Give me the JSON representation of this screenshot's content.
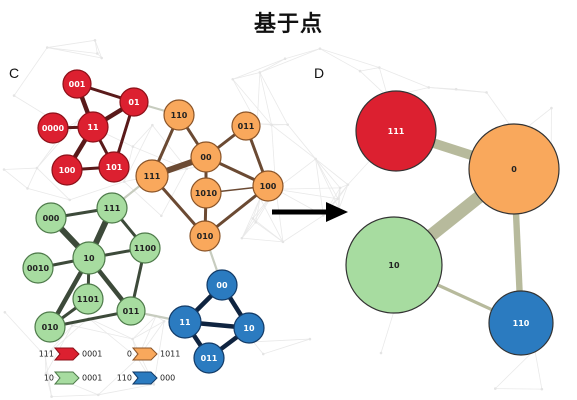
{
  "title": "基于点",
  "panels": {
    "left_label": "C",
    "right_label": "D"
  },
  "colors": {
    "red": "#dc2030",
    "red_dark": "#8c1018",
    "orange": "#f9a85c",
    "orange_dark": "#8a5428",
    "green": "#a7dca0",
    "green_dark": "#4e7a4a",
    "blue": "#2b7bc0",
    "blue_dark": "#123a66",
    "edge_red": "#5a1a1a",
    "edge_orange": "#6b4a33",
    "edge_green": "#3d4a3a",
    "edge_blue": "#0f2440",
    "edge_between": "#c7ccbf",
    "edge_summary": "#b0b392"
  },
  "diagram": {
    "left_nodes": [
      {
        "id": "001",
        "label": "001",
        "group": "red"
      },
      {
        "id": "01",
        "label": "01",
        "group": "red"
      },
      {
        "id": "0000",
        "label": "0000",
        "group": "red"
      },
      {
        "id": "11",
        "label": "11",
        "group": "red"
      },
      {
        "id": "100r",
        "label": "100",
        "group": "red"
      },
      {
        "id": "101",
        "label": "101",
        "group": "red"
      },
      {
        "id": "110o",
        "label": "110",
        "group": "orange"
      },
      {
        "id": "011o",
        "label": "011",
        "group": "orange"
      },
      {
        "id": "111o",
        "label": "111",
        "group": "orange"
      },
      {
        "id": "00o",
        "label": "00",
        "group": "orange"
      },
      {
        "id": "1010",
        "label": "1010",
        "group": "orange"
      },
      {
        "id": "100o",
        "label": "100",
        "group": "orange"
      },
      {
        "id": "010o",
        "label": "010",
        "group": "orange"
      },
      {
        "id": "000g",
        "label": "000",
        "group": "green"
      },
      {
        "id": "111g",
        "label": "111",
        "group": "green"
      },
      {
        "id": "10g",
        "label": "10",
        "group": "green"
      },
      {
        "id": "1100",
        "label": "1100",
        "group": "green"
      },
      {
        "id": "0010",
        "label": "0010",
        "group": "green"
      },
      {
        "id": "1101",
        "label": "1101",
        "group": "green"
      },
      {
        "id": "010g",
        "label": "010",
        "group": "green"
      },
      {
        "id": "011g",
        "label": "011",
        "group": "green"
      },
      {
        "id": "00b",
        "label": "00",
        "group": "blue"
      },
      {
        "id": "11b",
        "label": "11",
        "group": "blue"
      },
      {
        "id": "10b",
        "label": "10",
        "group": "blue"
      },
      {
        "id": "011b",
        "label": "011",
        "group": "blue"
      }
    ],
    "left_edges": [
      {
        "source": "001",
        "target": "01",
        "weight": 2
      },
      {
        "source": "001",
        "target": "11",
        "weight": 3
      },
      {
        "source": "01",
        "target": "11",
        "weight": 3
      },
      {
        "source": "01",
        "target": "101",
        "weight": 2
      },
      {
        "source": "0000",
        "target": "11",
        "weight": 2
      },
      {
        "source": "11",
        "target": "100r",
        "weight": 3
      },
      {
        "source": "11",
        "target": "101",
        "weight": 2
      },
      {
        "source": "100r",
        "target": "101",
        "weight": 2
      },
      {
        "source": "01",
        "target": "110o",
        "weight": 1
      },
      {
        "source": "110o",
        "target": "00o",
        "weight": 2
      },
      {
        "source": "110o",
        "target": "111o",
        "weight": 2
      },
      {
        "source": "011o",
        "target": "00o",
        "weight": 2
      },
      {
        "source": "011o",
        "target": "100o",
        "weight": 2
      },
      {
        "source": "111o",
        "target": "00o",
        "weight": 4
      },
      {
        "source": "111o",
        "target": "010o",
        "weight": 2
      },
      {
        "source": "00o",
        "target": "1010",
        "weight": 2
      },
      {
        "source": "00o",
        "target": "100o",
        "weight": 2
      },
      {
        "source": "1010",
        "target": "100o",
        "weight": 1
      },
      {
        "source": "1010",
        "target": "010o",
        "weight": 2
      },
      {
        "source": "100o",
        "target": "010o",
        "weight": 2
      },
      {
        "source": "111o",
        "target": "111g",
        "weight": 1
      },
      {
        "source": "000g",
        "target": "111g",
        "weight": 2
      },
      {
        "source": "000g",
        "target": "10g",
        "weight": 4
      },
      {
        "source": "111g",
        "target": "10g",
        "weight": 4
      },
      {
        "source": "111g",
        "target": "1100",
        "weight": 2
      },
      {
        "source": "10g",
        "target": "1100",
        "weight": 2
      },
      {
        "source": "10g",
        "target": "0010",
        "weight": 2
      },
      {
        "source": "10g",
        "target": "1101",
        "weight": 2
      },
      {
        "source": "10g",
        "target": "010g",
        "weight": 3
      },
      {
        "source": "10g",
        "target": "011g",
        "weight": 3
      },
      {
        "source": "1100",
        "target": "011g",
        "weight": 2
      },
      {
        "source": "1101",
        "target": "010g",
        "weight": 2
      },
      {
        "source": "010g",
        "target": "011g",
        "weight": 2
      },
      {
        "source": "011g",
        "target": "11b",
        "weight": 1
      },
      {
        "source": "010o",
        "target": "00b",
        "weight": 1
      },
      {
        "source": "00b",
        "target": "11b",
        "weight": 3
      },
      {
        "source": "00b",
        "target": "10b",
        "weight": 3
      },
      {
        "source": "11b",
        "target": "10b",
        "weight": 3
      },
      {
        "source": "11b",
        "target": "011b",
        "weight": 3
      },
      {
        "source": "10b",
        "target": "011b",
        "weight": 3
      }
    ],
    "legend": [
      {
        "from": "111",
        "to": "0001",
        "group": "red"
      },
      {
        "from": "0",
        "to": "1011",
        "group": "orange"
      },
      {
        "from": "10",
        "to": "0001",
        "group": "green"
      },
      {
        "from": "110",
        "to": "000",
        "group": "blue"
      }
    ],
    "right_nodes": [
      {
        "id": "111",
        "label": "111",
        "group": "red"
      },
      {
        "id": "0",
        "label": "0",
        "group": "orange"
      },
      {
        "id": "10",
        "label": "10",
        "group": "green"
      },
      {
        "id": "110",
        "label": "110",
        "group": "blue"
      }
    ],
    "right_edges": [
      {
        "source": "111",
        "target": "0",
        "weight": 3
      },
      {
        "source": "0",
        "target": "10",
        "weight": 4
      },
      {
        "source": "0",
        "target": "110",
        "weight": 2
      },
      {
        "source": "10",
        "target": "110",
        "weight": 1
      }
    ]
  }
}
